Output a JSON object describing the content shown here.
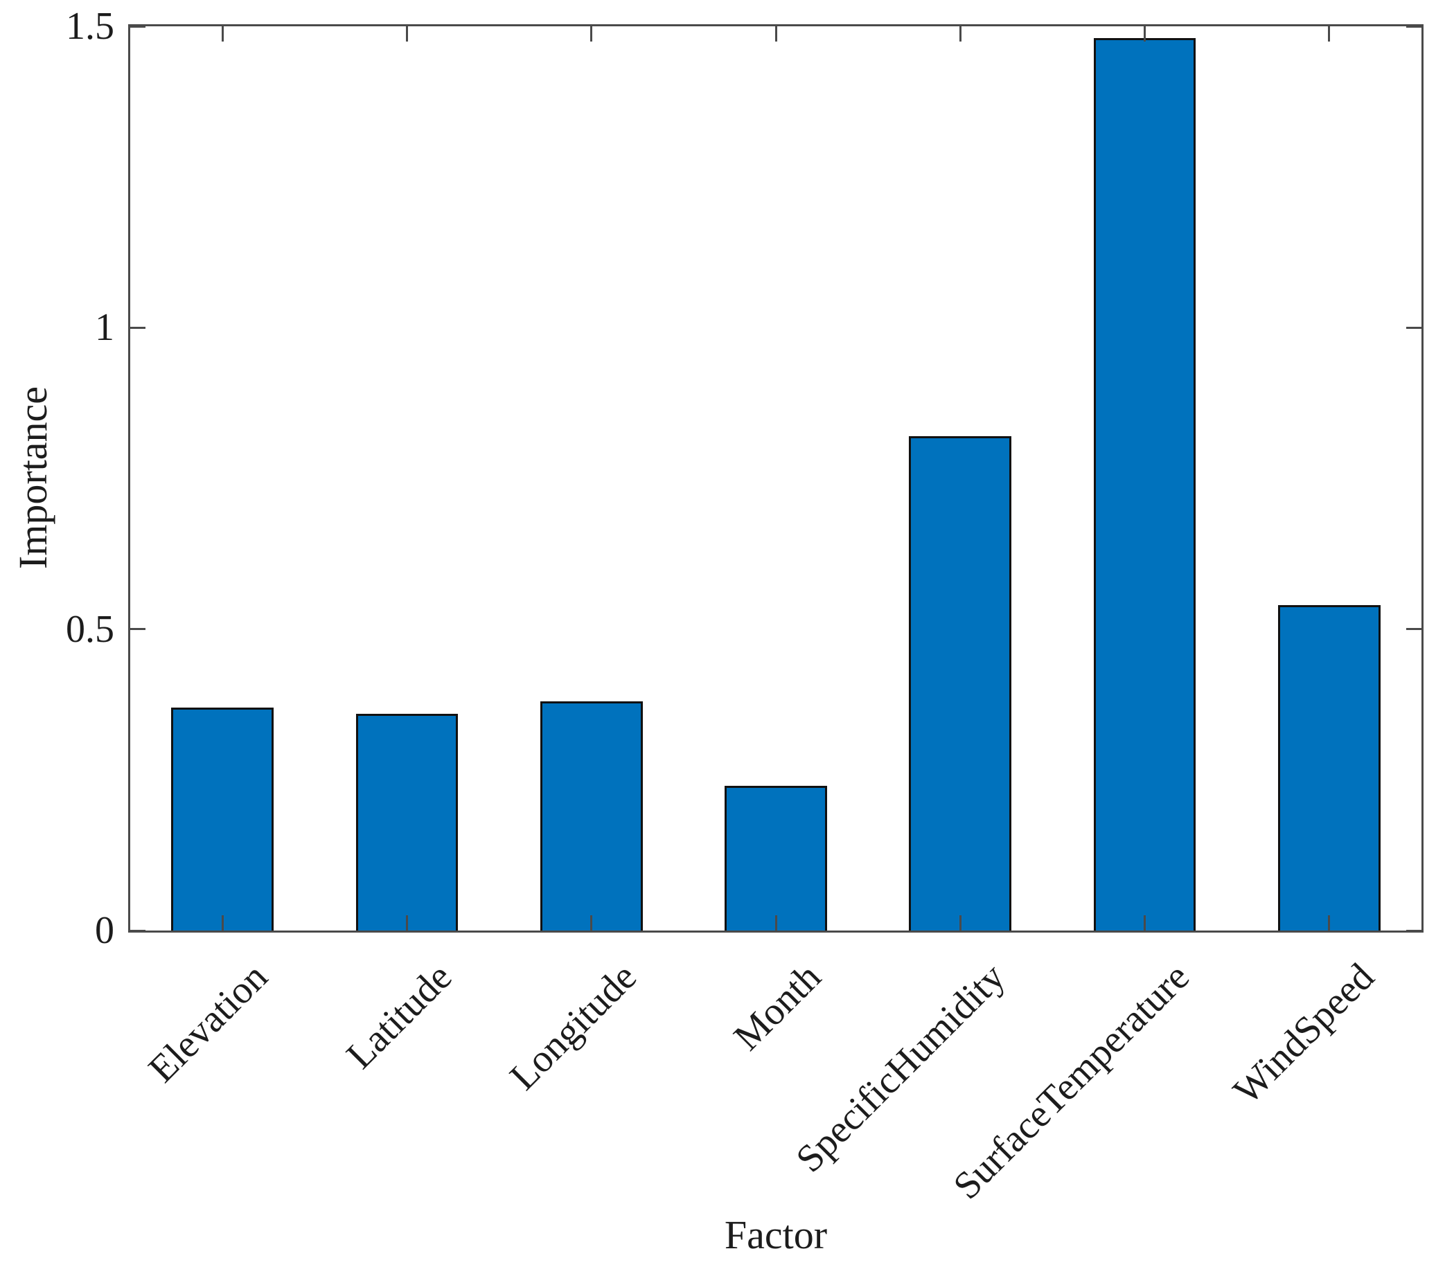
{
  "chart_data": {
    "type": "bar",
    "title": "",
    "xlabel": "Factor",
    "ylabel": "Importance",
    "categories": [
      "Elevation",
      "Latitude",
      "Longitude",
      "Month",
      "SpecificHumidity",
      "SurfaceTemperature",
      "WindSpeed"
    ],
    "values": [
      0.37,
      0.36,
      0.38,
      0.24,
      0.82,
      1.48,
      0.54
    ],
    "ylim": [
      0,
      1.5
    ],
    "yticks": [
      0,
      0.5,
      1,
      1.5
    ],
    "ytick_labels": [
      "0",
      "0.5",
      "1",
      "1.5"
    ],
    "xtick_label_rotation_deg": 45,
    "grid": "off",
    "legend": "none",
    "bar_width_fraction": 0.555,
    "colors": {
      "bar_fill": "#0072BD",
      "bar_edge": "#111111",
      "axis": "#4a4a4a",
      "text": "#1c1c1c",
      "background": "#ffffff"
    }
  }
}
